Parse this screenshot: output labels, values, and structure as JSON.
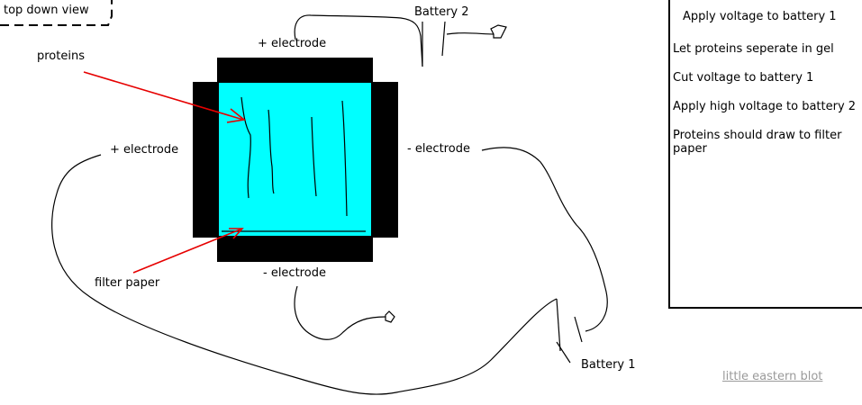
{
  "diagram": {
    "view_label": "top down view",
    "labels": {
      "battery2": "Battery 2",
      "battery1": "Battery 1",
      "plus_electrode_top": "+ electrode",
      "plus_electrode_left": "+ electrode",
      "minus_electrode_right": "- electrode",
      "minus_electrode_bottom": "- electrode",
      "proteins": "proteins",
      "filter_paper": "filter paper"
    },
    "colors": {
      "gel": "#00ffff",
      "electrode": "#000000",
      "arrow": "#e60000",
      "wire": "#000000"
    }
  },
  "steps_panel": {
    "steps": [
      "Apply voltage to battery 1",
      "Let proteins seperate in gel",
      "Cut voltage to battery 1",
      "Apply high voltage to battery 2",
      "Proteins should draw to filter paper"
    ]
  },
  "footer": {
    "link_text": "little eastern blot"
  }
}
